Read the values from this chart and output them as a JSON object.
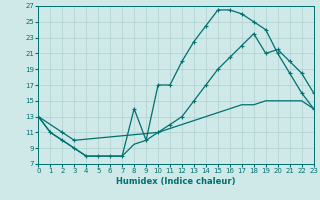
{
  "xlabel": "Humidex (Indice chaleur)",
  "bg_color": "#cfe8e8",
  "grid_color": "#b0d0d0",
  "line_color": "#007070",
  "xlim": [
    0,
    23
  ],
  "ylim": [
    7,
    27
  ],
  "xticks": [
    0,
    1,
    2,
    3,
    4,
    5,
    6,
    7,
    8,
    9,
    10,
    11,
    12,
    13,
    14,
    15,
    16,
    17,
    18,
    19,
    20,
    21,
    22,
    23
  ],
  "yticks": [
    7,
    9,
    11,
    13,
    15,
    17,
    19,
    21,
    23,
    25,
    27
  ],
  "curve1_x": [
    0,
    1,
    2,
    3,
    4,
    5,
    6,
    7,
    8,
    9,
    10,
    11,
    12,
    13,
    14,
    15,
    16,
    17,
    18,
    19,
    20,
    21,
    22,
    23
  ],
  "curve1_y": [
    13,
    11,
    10,
    9,
    8,
    8,
    8,
    8,
    14,
    10,
    17,
    17,
    20,
    22.5,
    24.5,
    26.5,
    26.5,
    26,
    25,
    24,
    21,
    18.5,
    16,
    14
  ],
  "curve2_x": [
    0,
    1,
    2,
    3,
    4,
    5,
    6,
    7,
    8,
    9,
    10,
    11,
    12,
    13,
    14,
    15,
    16,
    17,
    18,
    19,
    20,
    21,
    22,
    23
  ],
  "curve2_y": [
    13,
    11,
    10,
    9,
    8,
    8,
    8,
    8,
    9.5,
    10,
    11,
    11.5,
    12,
    12.5,
    13,
    13.5,
    14,
    14.5,
    14.5,
    15,
    15,
    15,
    15,
    14
  ],
  "curve3_x": [
    0,
    2,
    3,
    10,
    11,
    12,
    13,
    14,
    15,
    16,
    17,
    18,
    19,
    20,
    21,
    22,
    23
  ],
  "curve3_y": [
    13,
    11,
    10,
    11,
    12,
    13,
    15,
    17,
    19,
    20.5,
    22,
    23.5,
    21,
    21.5,
    20,
    18.5,
    16
  ]
}
